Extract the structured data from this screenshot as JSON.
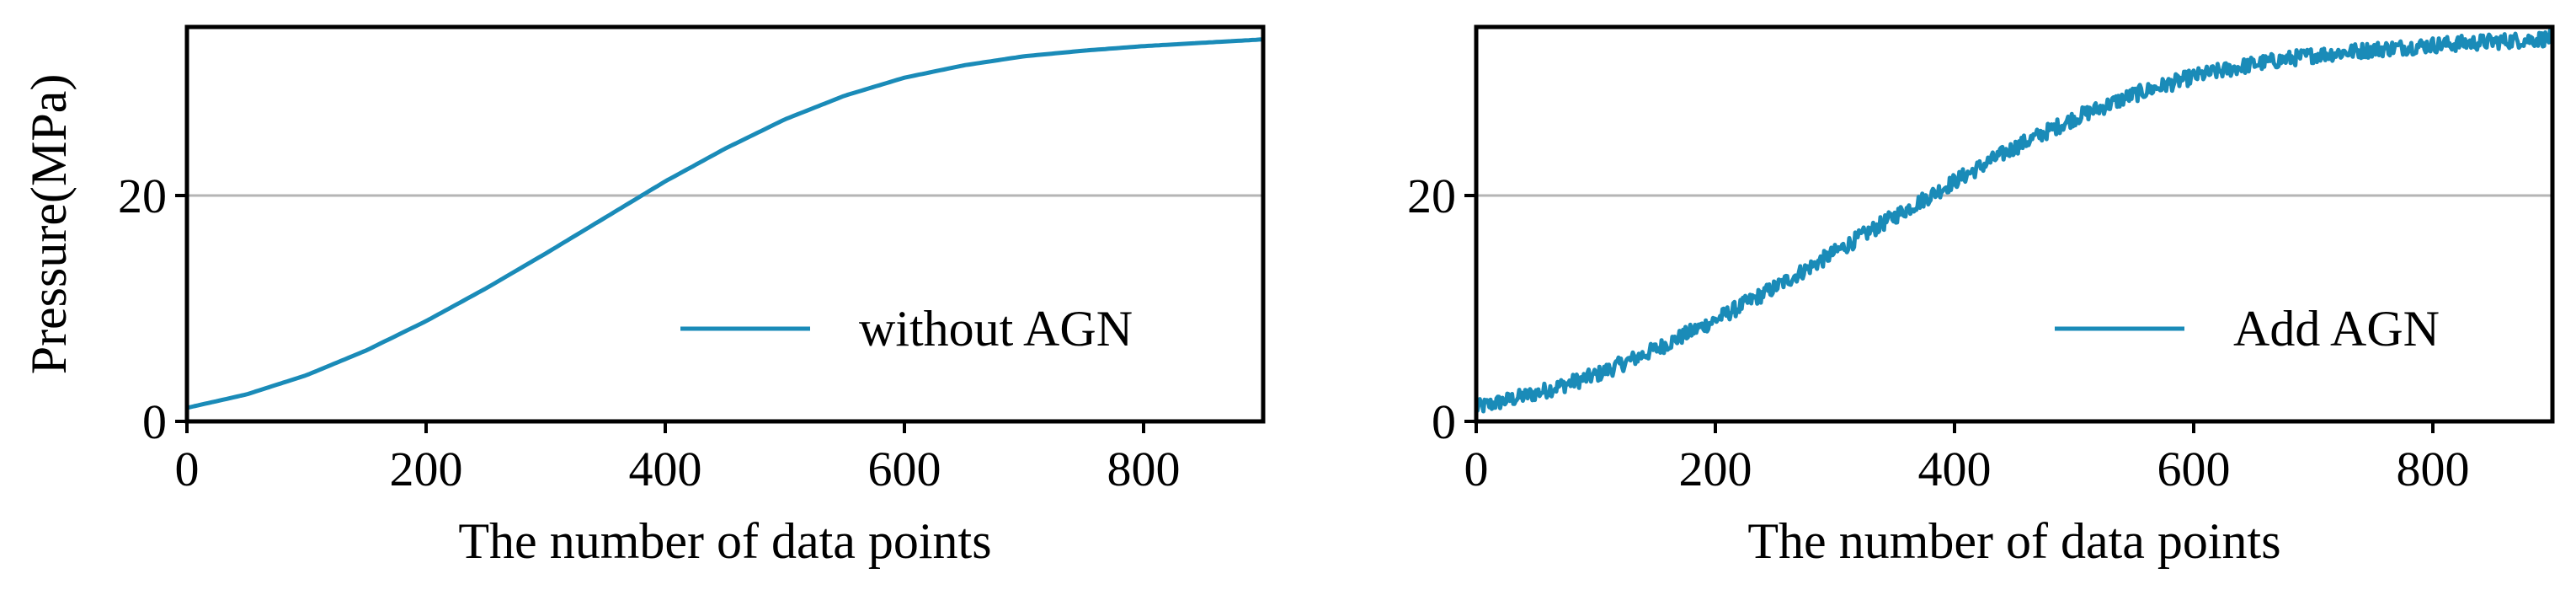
{
  "colors": {
    "series": "#1a8bb8",
    "gridline": "#b5b5b5",
    "frame": "#000000",
    "background": "#ffffff"
  },
  "chart_data": [
    {
      "type": "line",
      "xlabel": "The number of data points",
      "ylabel": "Pressure(MPa)",
      "xlim": [
        0,
        900
      ],
      "ylim": [
        0,
        35
      ],
      "xticks": [
        0,
        200,
        400,
        600,
        800
      ],
      "yticks": [
        0,
        20
      ],
      "grid": "y at 20",
      "legend": "lower-right",
      "noisy": false,
      "series": [
        {
          "name": "without AGN",
          "x": [
            0,
            50,
            100,
            150,
            200,
            250,
            300,
            350,
            400,
            450,
            500,
            550,
            600,
            650,
            700,
            750,
            800,
            850,
            900
          ],
          "y": [
            1.2,
            2.4,
            4.1,
            6.3,
            8.9,
            11.8,
            14.9,
            18.1,
            21.3,
            24.2,
            26.8,
            28.9,
            30.5,
            31.6,
            32.4,
            32.9,
            33.3,
            33.6,
            33.9
          ]
        }
      ]
    },
    {
      "type": "line",
      "xlabel": "The number of data points",
      "ylabel": "",
      "xlim": [
        0,
        900
      ],
      "ylim": [
        0,
        35
      ],
      "xticks": [
        0,
        200,
        400,
        600,
        800
      ],
      "yticks": [
        20
      ],
      "grid": "y at 20",
      "legend": "lower-right",
      "noisy": true,
      "series": [
        {
          "name": "Add AGN",
          "x": [
            0,
            50,
            100,
            150,
            200,
            250,
            300,
            350,
            400,
            450,
            500,
            550,
            600,
            650,
            700,
            750,
            800,
            850,
            900
          ],
          "y": [
            1.2,
            2.5,
            4.1,
            6.4,
            9.0,
            11.9,
            15.0,
            18.2,
            21.3,
            24.3,
            26.9,
            29.0,
            30.6,
            31.7,
            32.5,
            33.0,
            33.4,
            33.7,
            34.0
          ]
        }
      ]
    }
  ]
}
